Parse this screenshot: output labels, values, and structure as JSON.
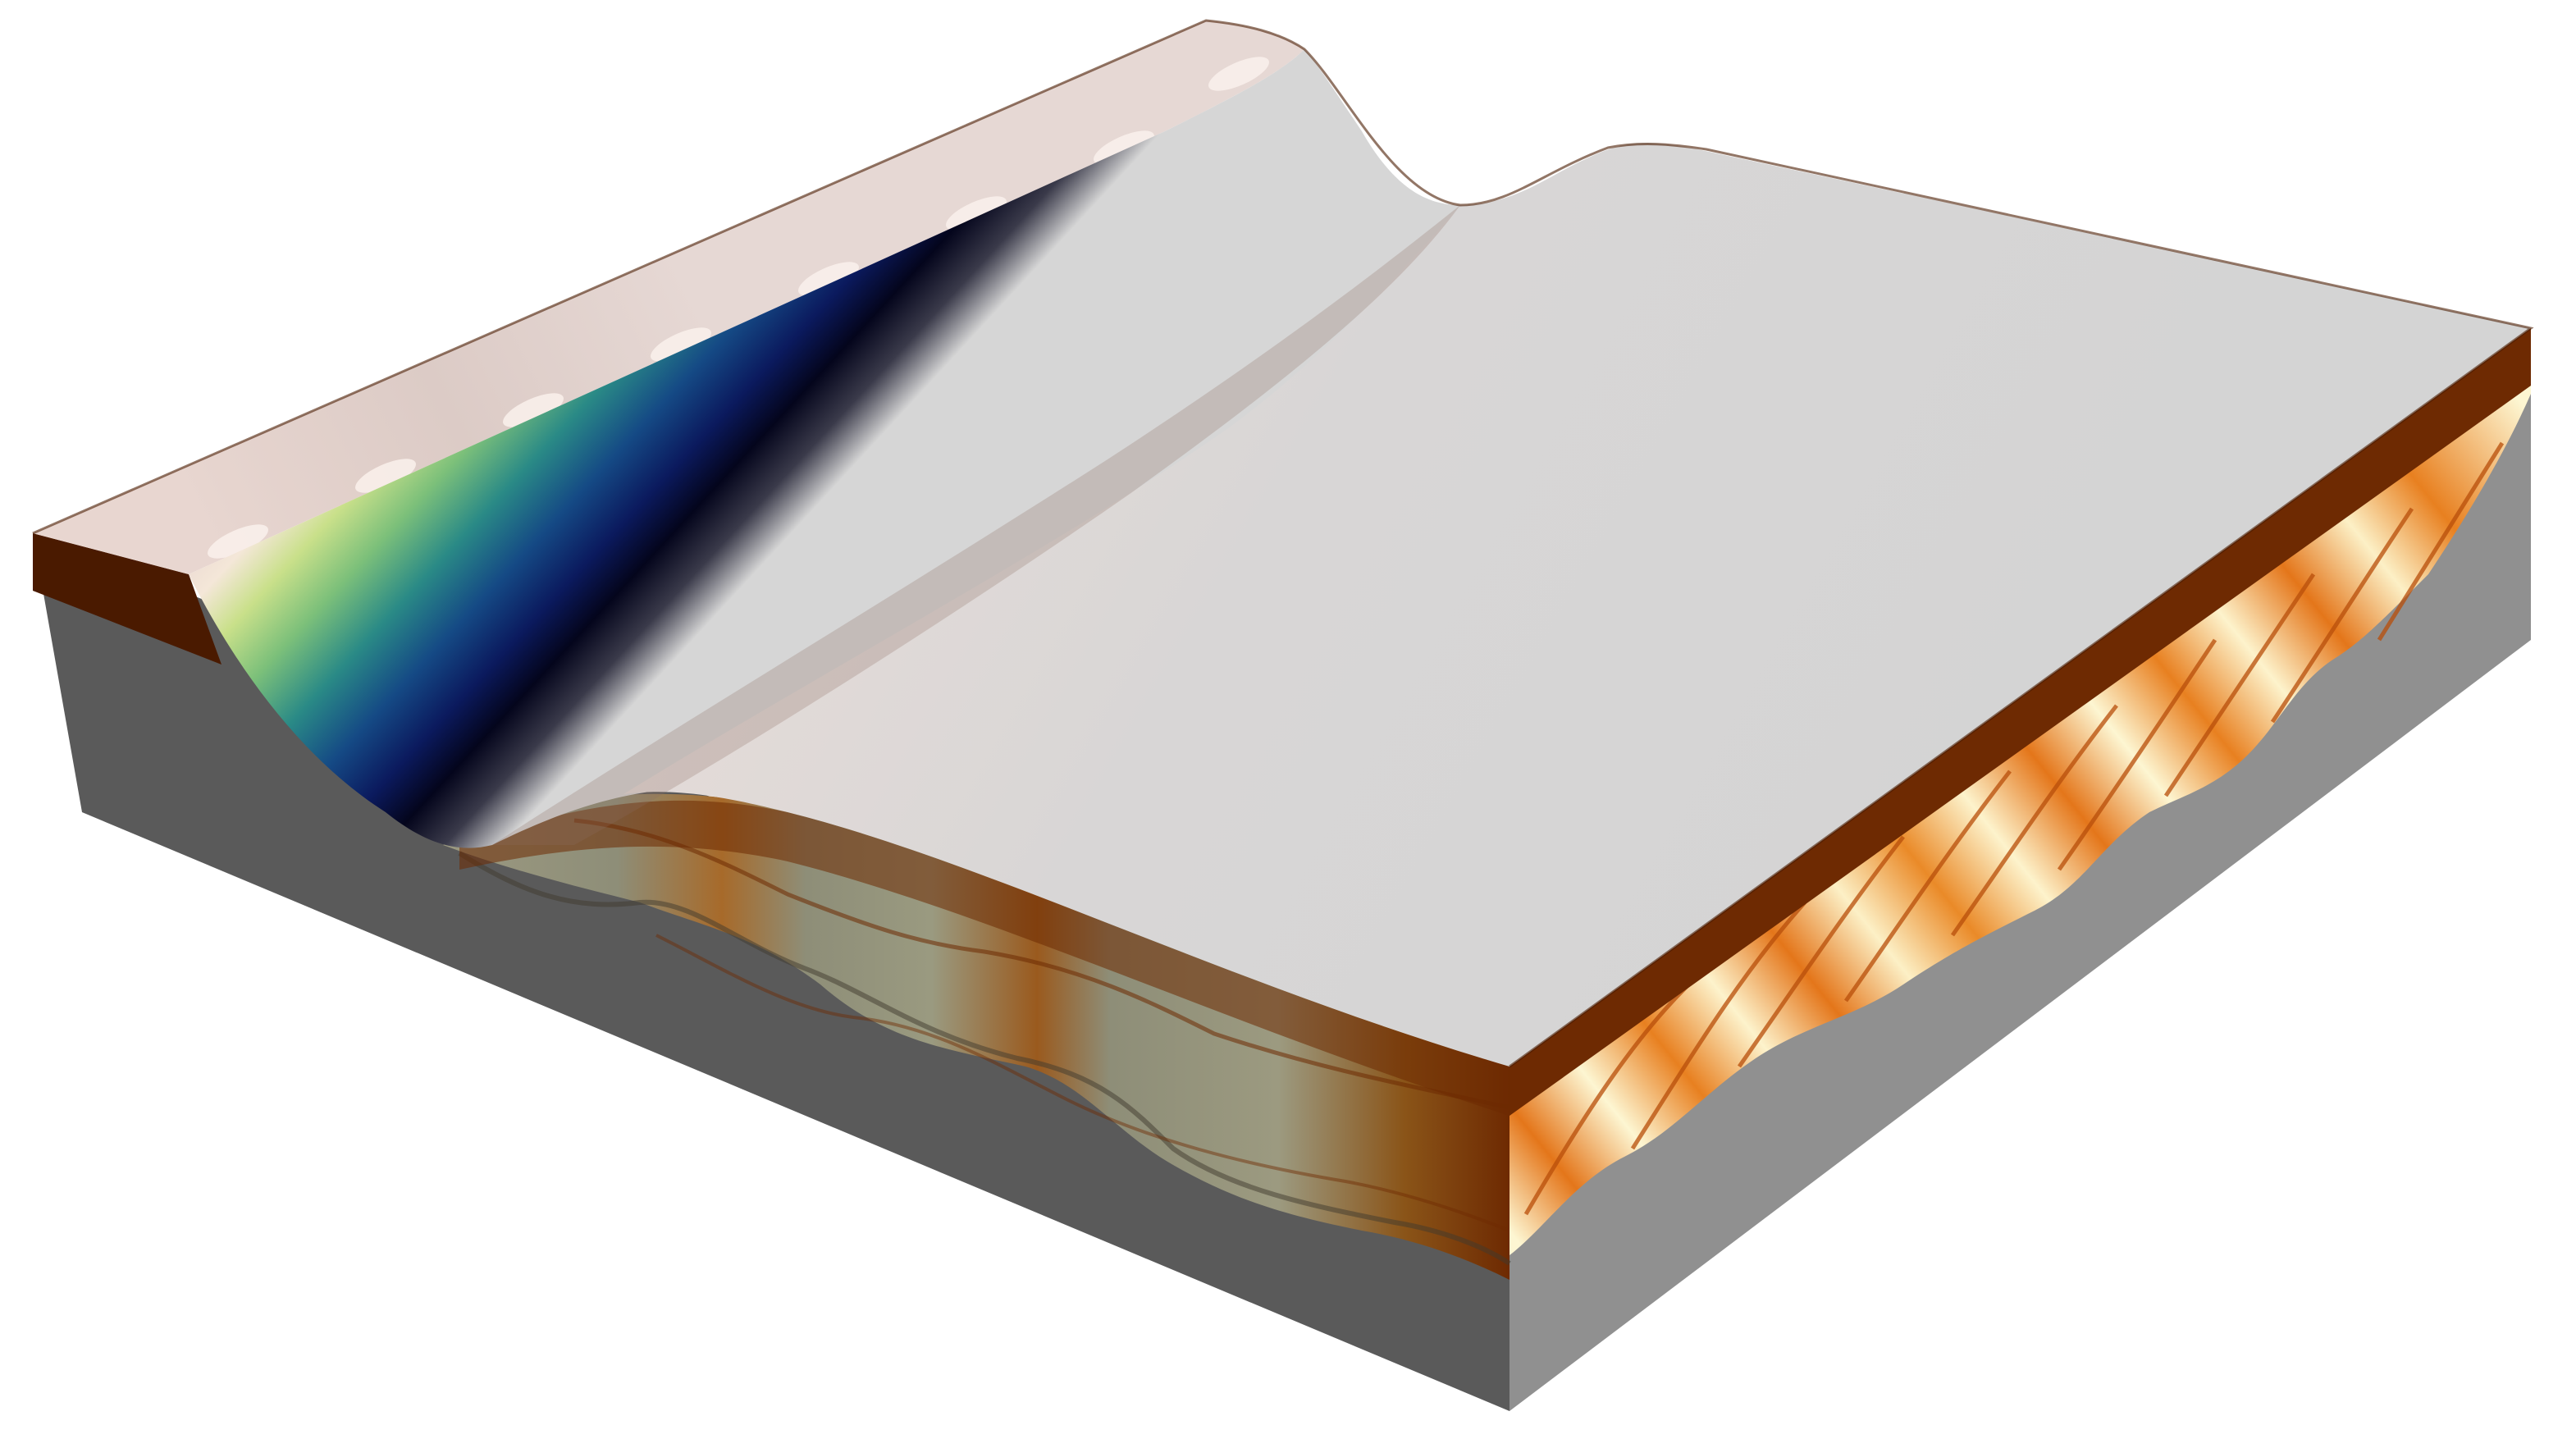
{
  "scene": {
    "description_label": "",
    "colors": {
      "background": "#ffffff",
      "top_surface": "#d6d6d6",
      "top_surface_highlight": "#e8dcd8",
      "ridge_highlight": "#ead8d2",
      "channel_deep": "#05051e",
      "channel_navy": "#0c1d66",
      "channel_blue": "#144d88",
      "channel_teal": "#1e7e8a",
      "channel_green": "#5dae7a",
      "channel_lime": "#a8d483",
      "channel_pale": "#f1e9c4",
      "brown_dark": "#4a1a00",
      "brown_mid": "#6e2a02",
      "brown_rust": "#9a4a12",
      "orange": "#e4761a",
      "orange_light": "#f3a544",
      "cream": "#fdf6d2",
      "olive_gray": "#8e8e78",
      "side_dark_gray": "#5a5a5a",
      "side_light_gray": "#909090"
    }
  }
}
